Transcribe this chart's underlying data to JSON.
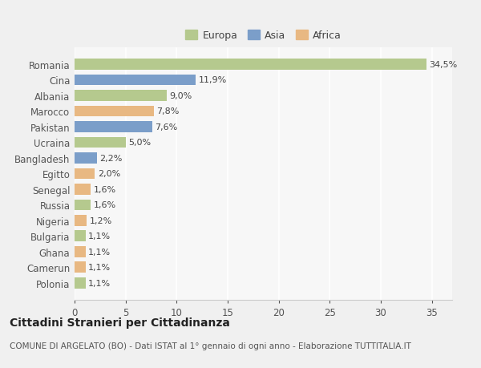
{
  "countries": [
    "Romania",
    "Cina",
    "Albania",
    "Marocco",
    "Pakistan",
    "Ucraina",
    "Bangladesh",
    "Egitto",
    "Senegal",
    "Russia",
    "Nigeria",
    "Bulgaria",
    "Ghana",
    "Camerun",
    "Polonia"
  ],
  "values": [
    34.5,
    11.9,
    9.0,
    7.8,
    7.6,
    5.0,
    2.2,
    2.0,
    1.6,
    1.6,
    1.2,
    1.1,
    1.1,
    1.1,
    1.1
  ],
  "labels": [
    "34,5%",
    "11,9%",
    "9,0%",
    "7,8%",
    "7,6%",
    "5,0%",
    "2,2%",
    "2,0%",
    "1,6%",
    "1,6%",
    "1,2%",
    "1,1%",
    "1,1%",
    "1,1%",
    "1,1%"
  ],
  "continents": [
    "Europa",
    "Asia",
    "Europa",
    "Africa",
    "Asia",
    "Europa",
    "Asia",
    "Africa",
    "Africa",
    "Europa",
    "Africa",
    "Europa",
    "Africa",
    "Africa",
    "Europa"
  ],
  "colors": {
    "Europa": "#b5c98e",
    "Asia": "#7b9ec9",
    "Africa": "#e8b882"
  },
  "xlim": [
    0,
    37
  ],
  "xticks": [
    0,
    5,
    10,
    15,
    20,
    25,
    30,
    35
  ],
  "outer_bg": "#f0f0f0",
  "plot_bg": "#f7f7f7",
  "grid_color": "#ffffff",
  "title": "Cittadini Stranieri per Cittadinanza",
  "subtitle": "COMUNE DI ARGELATO (BO) - Dati ISTAT al 1° gennaio di ogni anno - Elaborazione TUTTITALIA.IT",
  "bar_height": 0.7,
  "label_fontsize": 8,
  "ytick_fontsize": 8.5,
  "xtick_fontsize": 8.5,
  "legend_fontsize": 9,
  "title_fontsize": 10,
  "subtitle_fontsize": 7.5
}
